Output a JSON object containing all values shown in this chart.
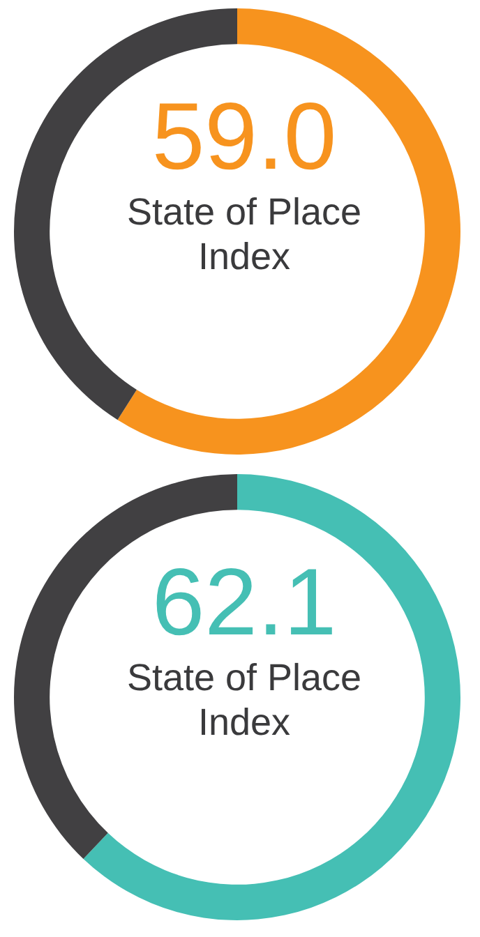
{
  "chart_data": [
    {
      "type": "donut",
      "title": "State of Place Index",
      "categories": [
        null,
        null
      ],
      "values": [
        59.0,
        41.0
      ],
      "colors": [
        "#f7931e",
        "#414042"
      ],
      "value_labels": [
        "59.0",
        null
      ],
      "legend": false
    },
    {
      "type": "donut",
      "title": "State of Place Index",
      "categories": [
        null,
        null
      ],
      "values": [
        62.1,
        37.9
      ],
      "colors": [
        "#45bfb4",
        "#414042"
      ],
      "value_labels": [
        "62.1",
        null
      ],
      "legend": false
    }
  ]
}
